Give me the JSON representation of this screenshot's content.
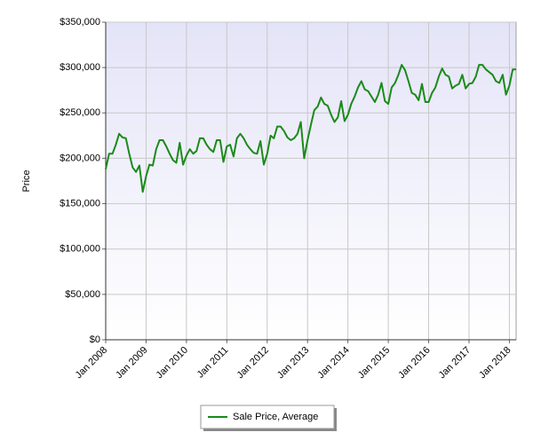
{
  "chart_data": {
    "type": "line",
    "y_label": "Price",
    "x": [
      "2008-01",
      "2008-02",
      "2008-03",
      "2008-04",
      "2008-05",
      "2008-06",
      "2008-07",
      "2008-08",
      "2008-09",
      "2008-10",
      "2008-11",
      "2008-12",
      "2009-01",
      "2009-02",
      "2009-03",
      "2009-04",
      "2009-05",
      "2009-06",
      "2009-07",
      "2009-08",
      "2009-09",
      "2009-10",
      "2009-11",
      "2009-12",
      "2010-01",
      "2010-02",
      "2010-03",
      "2010-04",
      "2010-05",
      "2010-06",
      "2010-07",
      "2010-08",
      "2010-09",
      "2010-10",
      "2010-11",
      "2010-12",
      "2011-01",
      "2011-02",
      "2011-03",
      "2011-04",
      "2011-05",
      "2011-06",
      "2011-07",
      "2011-08",
      "2011-09",
      "2011-10",
      "2011-11",
      "2011-12",
      "2012-01",
      "2012-02",
      "2012-03",
      "2012-04",
      "2012-05",
      "2012-06",
      "2012-07",
      "2012-08",
      "2012-09",
      "2012-10",
      "2012-11",
      "2012-12",
      "2013-01",
      "2013-02",
      "2013-03",
      "2013-04",
      "2013-05",
      "2013-06",
      "2013-07",
      "2013-08",
      "2013-09",
      "2013-10",
      "2013-11",
      "2013-12",
      "2014-01",
      "2014-02",
      "2014-03",
      "2014-04",
      "2014-05",
      "2014-06",
      "2014-07",
      "2014-08",
      "2014-09",
      "2014-10",
      "2014-11",
      "2014-12",
      "2015-01",
      "2015-02",
      "2015-03",
      "2015-04",
      "2015-05",
      "2015-06",
      "2015-07",
      "2015-08",
      "2015-09",
      "2015-10",
      "2015-11",
      "2015-12",
      "2016-01",
      "2016-02",
      "2016-03",
      "2016-04",
      "2016-05",
      "2016-06",
      "2016-07",
      "2016-08",
      "2016-09",
      "2016-10",
      "2016-11",
      "2016-12",
      "2017-01",
      "2017-02",
      "2017-03",
      "2017-04",
      "2017-05",
      "2017-06",
      "2017-07",
      "2017-08",
      "2017-09",
      "2017-10",
      "2017-11",
      "2017-12",
      "2018-01",
      "2018-02",
      "2018-03"
    ],
    "series": [
      {
        "name": "Sale Price, Average",
        "color": "#1a8a1a",
        "values": [
          188000,
          205000,
          205000,
          215000,
          227000,
          223000,
          222000,
          205000,
          190000,
          185000,
          192000,
          163000,
          180000,
          193000,
          192000,
          210000,
          220000,
          220000,
          213000,
          205000,
          198000,
          195000,
          217000,
          193000,
          203000,
          210000,
          205000,
          208000,
          222000,
          222000,
          215000,
          210000,
          207000,
          220000,
          220000,
          196000,
          213000,
          215000,
          202000,
          222000,
          227000,
          222000,
          215000,
          210000,
          206000,
          205000,
          219000,
          193000,
          205000,
          225000,
          222000,
          235000,
          235000,
          230000,
          223000,
          220000,
          222000,
          227000,
          240000,
          200000,
          220000,
          237000,
          253000,
          257000,
          267000,
          260000,
          258000,
          248000,
          240000,
          245000,
          263000,
          241000,
          248000,
          260000,
          268000,
          278000,
          285000,
          276000,
          274000,
          268000,
          262000,
          270000,
          283000,
          263000,
          260000,
          278000,
          283000,
          292000,
          303000,
          297000,
          285000,
          272000,
          270000,
          264000,
          282000,
          262000,
          262000,
          272000,
          278000,
          290000,
          299000,
          292000,
          290000,
          277000,
          280000,
          282000,
          292000,
          277000,
          282000,
          283000,
          290000,
          303000,
          303000,
          298000,
          295000,
          292000,
          285000,
          283000,
          292000,
          270000,
          280000,
          298000,
          298000
        ]
      }
    ],
    "xlim": [
      "2008-01",
      "2018-03"
    ],
    "xticks": [
      {
        "value": "2008-01",
        "label": "Jan 2008"
      },
      {
        "value": "2009-01",
        "label": "Jan 2009"
      },
      {
        "value": "2010-01",
        "label": "Jan 2010"
      },
      {
        "value": "2011-01",
        "label": "Jan 2011"
      },
      {
        "value": "2012-01",
        "label": "Jan 2012"
      },
      {
        "value": "2013-01",
        "label": "Jan 2013"
      },
      {
        "value": "2014-01",
        "label": "Jan 2014"
      },
      {
        "value": "2015-01",
        "label": "Jan 2015"
      },
      {
        "value": "2016-01",
        "label": "Jan 2016"
      },
      {
        "value": "2017-01",
        "label": "Jan 2017"
      },
      {
        "value": "2018-01",
        "label": "Jan 2018"
      }
    ],
    "ylim": [
      0,
      350000
    ],
    "yticks": [
      {
        "value": 0,
        "label": "$0"
      },
      {
        "value": 50000,
        "label": "$50,000"
      },
      {
        "value": 100000,
        "label": "$100,000"
      },
      {
        "value": 150000,
        "label": "$150,000"
      },
      {
        "value": 200000,
        "label": "$200,000"
      },
      {
        "value": 250000,
        "label": "$250,000"
      },
      {
        "value": 300000,
        "label": "$300,000"
      },
      {
        "value": 350000,
        "label": "$350,000"
      }
    ],
    "grid": true,
    "legend": "bottom"
  }
}
